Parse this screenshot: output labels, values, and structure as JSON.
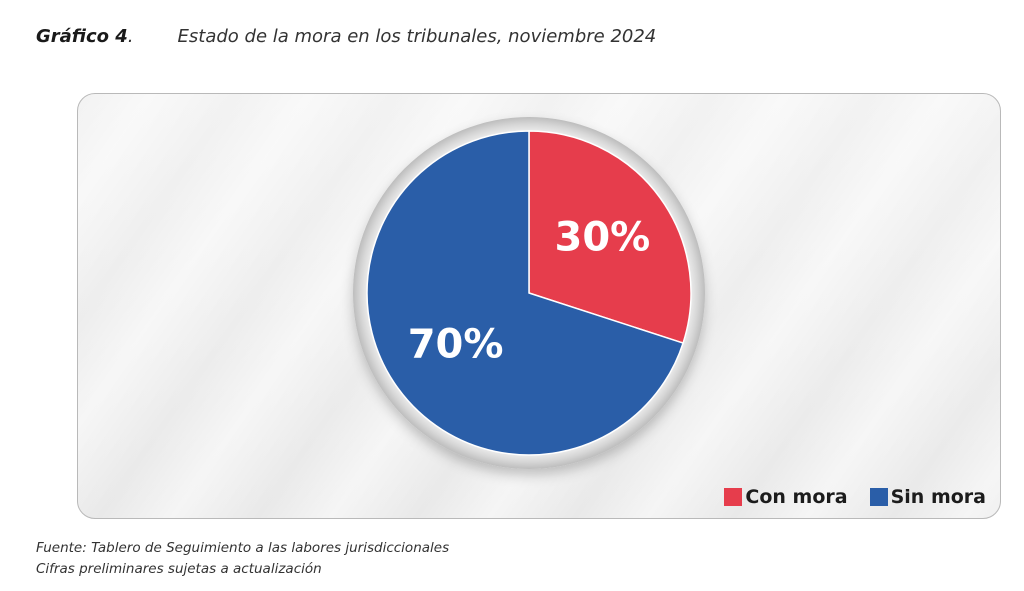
{
  "caption": {
    "label": "Gráfico 4",
    "dot": ".",
    "title": "Estado de la mora en los tribunales, noviembre 2024"
  },
  "colors": {
    "con_mora": "#e63d4c",
    "sin_mora": "#2a5ea8"
  },
  "chart_data": {
    "type": "pie",
    "title": "Estado de la mora en los tribunales, noviembre 2024",
    "slices": [
      {
        "name": "Con mora",
        "value": 30,
        "label": "30%",
        "color": "#e63d4c"
      },
      {
        "name": "Sin mora",
        "value": 70,
        "label": "70%",
        "color": "#2a5ea8"
      }
    ],
    "legend": {
      "position": "bottom-right",
      "items": [
        "Con mora",
        "Sin mora"
      ]
    }
  },
  "footnote": {
    "source": "Fuente: Tablero de Seguimiento a las labores jurisdiccionales",
    "note": "Cifras preliminares sujetas a actualización"
  }
}
